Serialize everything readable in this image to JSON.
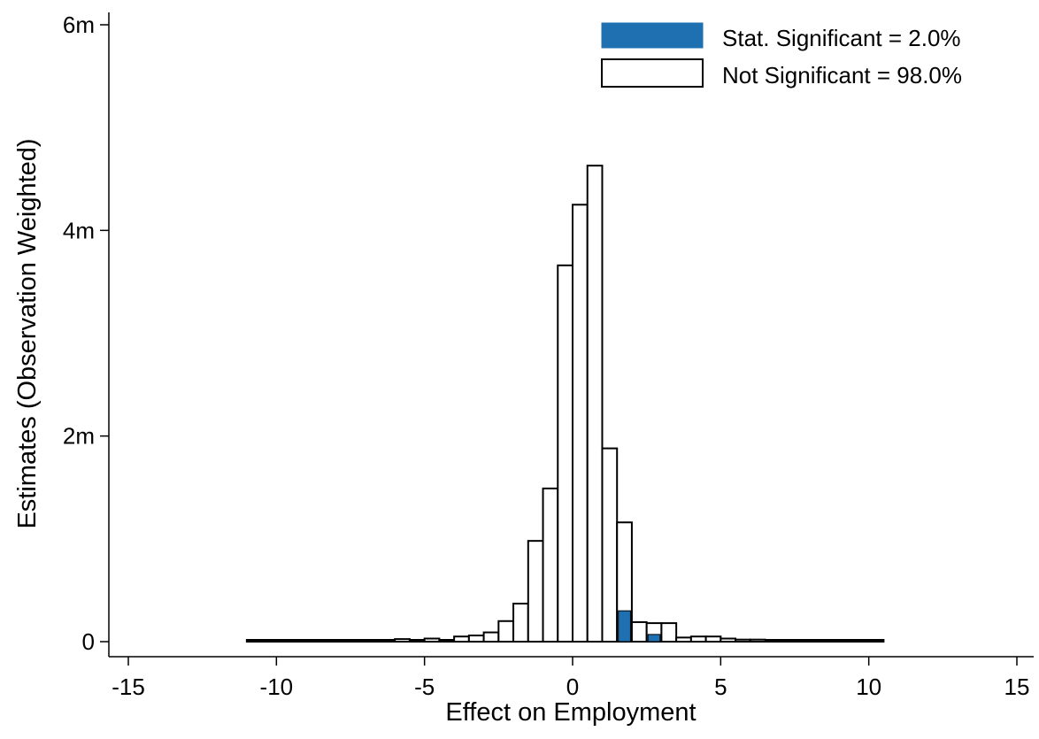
{
  "chart_data": {
    "type": "bar",
    "subtype": "stacked-histogram",
    "title": "",
    "xlabel": "Effect on Employment",
    "ylabel": "Estimates (Observation Weighted)",
    "xlim": [
      -16,
      15.5
    ],
    "ylim": [
      0,
      6.1
    ],
    "xticks": [
      {
        "value": -15,
        "label": "-15"
      },
      {
        "value": -10,
        "label": "-10"
      },
      {
        "value": -5,
        "label": "-5"
      },
      {
        "value": 0,
        "label": "0"
      },
      {
        "value": 5,
        "label": "5"
      },
      {
        "value": 10,
        "label": "10"
      },
      {
        "value": 15,
        "label": "15"
      }
    ],
    "yticks": [
      {
        "value": 0,
        "label": "0"
      },
      {
        "value": 2,
        "label": "2m"
      },
      {
        "value": 4,
        "label": "4m"
      },
      {
        "value": 6,
        "label": "6m"
      }
    ],
    "y_units": "millions",
    "bin_width": 0.5,
    "bin_left_edges": [
      -11,
      -10.5,
      -10,
      -9.5,
      -9,
      -8.5,
      -8,
      -7.5,
      -7,
      -6.5,
      -6,
      -5.5,
      -5,
      -4.5,
      -4,
      -3.5,
      -3,
      -2.5,
      -2,
      -1.5,
      -1,
      -0.5,
      0,
      0.5,
      1,
      1.5,
      2,
      2.5,
      3,
      3.5,
      4,
      4.5,
      5,
      5.5,
      6,
      6.5,
      7,
      7.5,
      8,
      8.5,
      9,
      9.5,
      10
    ],
    "series": [
      {
        "name": "Stat. Significant = 2.0%",
        "color": "#1f70b0",
        "values": [
          0,
          0,
          0,
          0,
          0,
          0,
          0,
          0,
          0,
          0,
          0,
          0,
          0,
          0,
          0,
          0,
          0,
          0,
          0,
          0,
          0,
          0,
          0,
          0,
          0,
          0.3,
          0,
          0.07,
          0,
          0,
          0,
          0,
          0,
          0,
          0,
          0,
          0,
          0,
          0,
          0,
          0,
          0,
          0
        ]
      },
      {
        "name": "Not Significant = 98.0%",
        "color": "#ffffff",
        "values": [
          0.015,
          0.008,
          0.005,
          0.008,
          0.007,
          0.008,
          0.006,
          0.008,
          0.01,
          0.015,
          0.025,
          0.01,
          0.03,
          0.015,
          0.05,
          0.06,
          0.09,
          0.2,
          0.37,
          0.98,
          1.49,
          3.66,
          4.25,
          4.63,
          1.88,
          0.86,
          0.19,
          0.11,
          0.18,
          0.04,
          0.05,
          0.05,
          0.03,
          0.02,
          0.02,
          0.012,
          0.01,
          0.008,
          0.008,
          0.006,
          0.005,
          0.008,
          0.01
        ]
      }
    ],
    "legend": {
      "position": "top-right",
      "items": [
        {
          "label": "Stat. Significant = 2.0%",
          "color": "#1f70b0"
        },
        {
          "label": "Not Significant = 98.0%",
          "color": "#ffffff"
        }
      ]
    },
    "grid": false
  }
}
